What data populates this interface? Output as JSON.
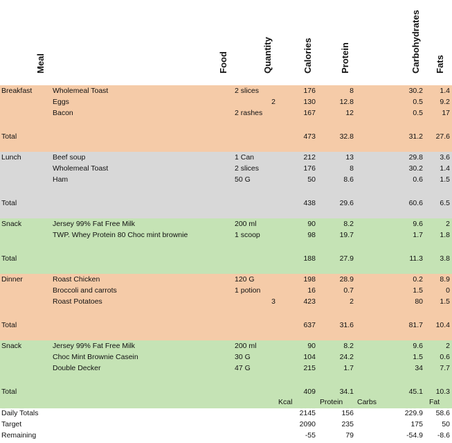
{
  "headers": {
    "meal": "Meal",
    "food": "Food",
    "quantity": "Quantity",
    "calories": "Calories",
    "protein": "Protein",
    "carbohydrates": "Carbohydrates",
    "fats": "Fats"
  },
  "colors": {
    "breakfast": "#f5cba8",
    "lunch": "#d8d8d8",
    "snack": "#c5e3b5",
    "dinner": "#f5cba8"
  },
  "meals": [
    {
      "name": "Breakfast",
      "rows": [
        {
          "food": "Wholemeal Toast",
          "qty": "2 slices",
          "qtyAlt": "",
          "cal": "176",
          "pro": "8",
          "carb": "30.2",
          "fat": "1.4"
        },
        {
          "food": "Eggs",
          "qty": "",
          "qtyAlt": "2",
          "cal": "130",
          "pro": "12.8",
          "carb": "0.5",
          "fat": "9.2"
        },
        {
          "food": "Bacon",
          "qty": "2 rashes",
          "qtyAlt": "",
          "cal": "167",
          "pro": "12",
          "carb": "0.5",
          "fat": "17"
        }
      ],
      "total": {
        "label": "Total",
        "cal": "473",
        "pro": "32.8",
        "carb": "31.2",
        "fat": "27.6"
      }
    },
    {
      "name": "Lunch",
      "rows": [
        {
          "food": "Beef soup",
          "qty": "1 Can",
          "qtyAlt": "",
          "cal": "212",
          "pro": "13",
          "carb": "29.8",
          "fat": "3.6"
        },
        {
          "food": "Wholemeal Toast",
          "qty": "2 slices",
          "qtyAlt": "",
          "cal": "176",
          "pro": "8",
          "carb": "30.2",
          "fat": "1.4"
        },
        {
          "food": "Ham",
          "qty": "50 G",
          "qtyAlt": "",
          "cal": "50",
          "pro": "8.6",
          "carb": "0.6",
          "fat": "1.5"
        }
      ],
      "total": {
        "label": "Total",
        "cal": "438",
        "pro": "29.6",
        "carb": "60.6",
        "fat": "6.5"
      }
    },
    {
      "name": "Snack",
      "rows": [
        {
          "food": "Jersey 99% Fat Free Milk",
          "qty": "200 ml",
          "qtyAlt": "",
          "cal": "90",
          "pro": "8.2",
          "carb": "9.6",
          "fat": "2"
        },
        {
          "food": "TWP. Whey Protein 80 Choc mint brownie",
          "qty": "1 scoop",
          "qtyAlt": "",
          "cal": "98",
          "pro": "19.7",
          "carb": "1.7",
          "fat": "1.8"
        }
      ],
      "total": {
        "label": "Total",
        "cal": "188",
        "pro": "27.9",
        "carb": "11.3",
        "fat": "3.8"
      }
    },
    {
      "name": "Dinner",
      "rows": [
        {
          "food": "Roast Chicken",
          "qty": "120 G",
          "qtyAlt": "",
          "cal": "198",
          "pro": "28.9",
          "carb": "0.2",
          "fat": "8.9"
        },
        {
          "food": "Broccoli and carrots",
          "qty": "1 potion",
          "qtyAlt": "",
          "cal": "16",
          "pro": "0.7",
          "carb": "1.5",
          "fat": "0"
        },
        {
          "food": "Roast Potatoes",
          "qty": "",
          "qtyAlt": "3",
          "cal": "423",
          "pro": "2",
          "carb": "80",
          "fat": "1.5"
        }
      ],
      "total": {
        "label": "Total",
        "cal": "637",
        "pro": "31.6",
        "carb": "81.7",
        "fat": "10.4"
      }
    },
    {
      "name": "Snack",
      "rows": [
        {
          "food": "Jersey 99% Fat Free Milk",
          "qty": "200 ml",
          "qtyAlt": "",
          "cal": "90",
          "pro": "8.2",
          "carb": "9.6",
          "fat": "2"
        },
        {
          "food": "Choc Mint Brownie Casein",
          "qty": "30 G",
          "qtyAlt": "",
          "cal": "104",
          "pro": "24.2",
          "carb": "1.5",
          "fat": "0.6"
        },
        {
          "food": "Double Decker",
          "qty": "47  G",
          "qtyAlt": "",
          "cal": "215",
          "pro": "1.7",
          "carb": "34",
          "fat": "7.7"
        }
      ],
      "total": {
        "label": "Total",
        "cal": "409",
        "pro": "34.1",
        "carb": "45.1",
        "fat": "10.3"
      }
    }
  ],
  "summary": {
    "labels": {
      "kcal": "Kcal",
      "protein": "Protein",
      "carbs": "Carbs",
      "fat": "Fat"
    },
    "rows": [
      {
        "label": "Daily Totals",
        "cal": "2145",
        "pro": "156",
        "carb": "229.9",
        "fat": "58.6"
      },
      {
        "label": "Target",
        "cal": "2090",
        "pro": "235",
        "carb": "175",
        "fat": "50"
      },
      {
        "label": "Remaining",
        "cal": "-55",
        "pro": "79",
        "carb": "-54.9",
        "fat": "-8.6"
      }
    ]
  }
}
